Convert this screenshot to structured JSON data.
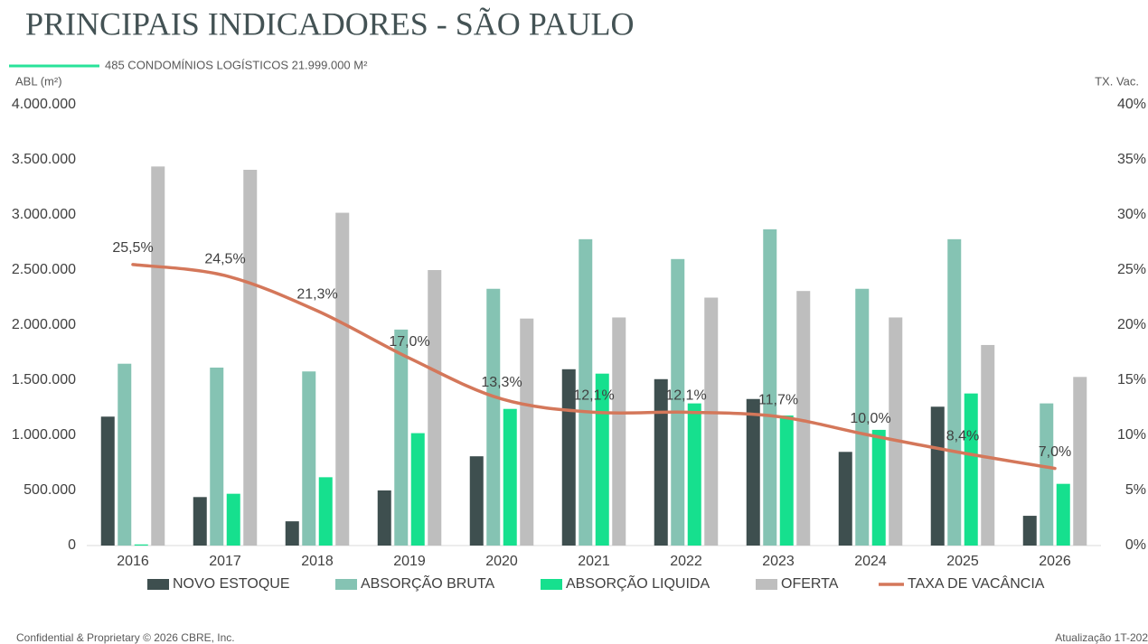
{
  "chart_data": {
    "type": "bar",
    "title": "PRINCIPAIS INDICADORES - SÃO PAULO",
    "subtitle": "485 CONDOMÍNIOS LOGÍSTICOS 21.999.000 M²",
    "y_label": "ABL (m²)",
    "y2_label": "TX. Vac.",
    "categories": [
      "2016",
      "2017",
      "2018",
      "2019",
      "2020",
      "2021",
      "2022",
      "2023",
      "2024",
      "2025",
      "2026"
    ],
    "series": [
      {
        "name": "NOVO ESTOQUE",
        "color": "#3e4f4f",
        "values": [
          1170000,
          440000,
          220000,
          500000,
          810000,
          1600000,
          1510000,
          1330000,
          850000,
          1260000,
          270000
        ]
      },
      {
        "name": "ABSORÇÃO BRUTA",
        "color": "#85c3b3",
        "values": [
          1650000,
          1615000,
          1580000,
          1960000,
          2330000,
          2780000,
          2600000,
          2870000,
          2330000,
          2780000,
          1290000
        ]
      },
      {
        "name": "ABSORÇÃO LIQUIDA",
        "color": "#16e08e",
        "values": [
          10000,
          470000,
          620000,
          1020000,
          1240000,
          1560000,
          1290000,
          1180000,
          1050000,
          1380000,
          560000
        ]
      },
      {
        "name": "OFERTA",
        "color": "#bebebe",
        "values": [
          3440000,
          3410000,
          3020000,
          2500000,
          2060000,
          2070000,
          2250000,
          2310000,
          2070000,
          1820000,
          1530000
        ]
      },
      {
        "name": "TAXA DE VACÂNCIA",
        "color": "#d4775a",
        "type": "line",
        "axis": "y2",
        "values": [
          25.5,
          24.5,
          21.3,
          17.0,
          13.3,
          12.1,
          12.1,
          11.7,
          10.0,
          8.4,
          7.0
        ],
        "value_labels": [
          "25,5%",
          "24,5%",
          "21,3%",
          "17,0%",
          "13,3%",
          "12,1%",
          "12,1%",
          "11,7%",
          "10,0%",
          "8,4%",
          "7,0%"
        ]
      }
    ],
    "ylim": [
      0,
      4000000
    ],
    "yticks": [
      {
        "value": 0,
        "label": "0"
      },
      {
        "value": 500000,
        "label": "500.000"
      },
      {
        "value": 1000000,
        "label": "1.000.000"
      },
      {
        "value": 1500000,
        "label": "1.500.000"
      },
      {
        "value": 2000000,
        "label": "2.000.000"
      },
      {
        "value": 2500000,
        "label": "2.500.000"
      },
      {
        "value": 3000000,
        "label": "3.000.000"
      },
      {
        "value": 3500000,
        "label": "3.500.000"
      },
      {
        "value": 4000000,
        "label": "4.000.000"
      }
    ],
    "y2lim": [
      0,
      40
    ],
    "y2ticks": [
      {
        "value": 0,
        "label": "0%"
      },
      {
        "value": 5,
        "label": "5%"
      },
      {
        "value": 10,
        "label": "10%"
      },
      {
        "value": 15,
        "label": "15%"
      },
      {
        "value": 20,
        "label": "20%"
      },
      {
        "value": 25,
        "label": "25%"
      },
      {
        "value": 30,
        "label": "30%"
      },
      {
        "value": 35,
        "label": "35%"
      },
      {
        "value": 40,
        "label": "40%"
      }
    ],
    "grid": false,
    "legend": "bottom"
  },
  "footer": {
    "left": "Confidential & Proprietary © 2026 CBRE, Inc.",
    "right": "Atualização 1T-202"
  }
}
